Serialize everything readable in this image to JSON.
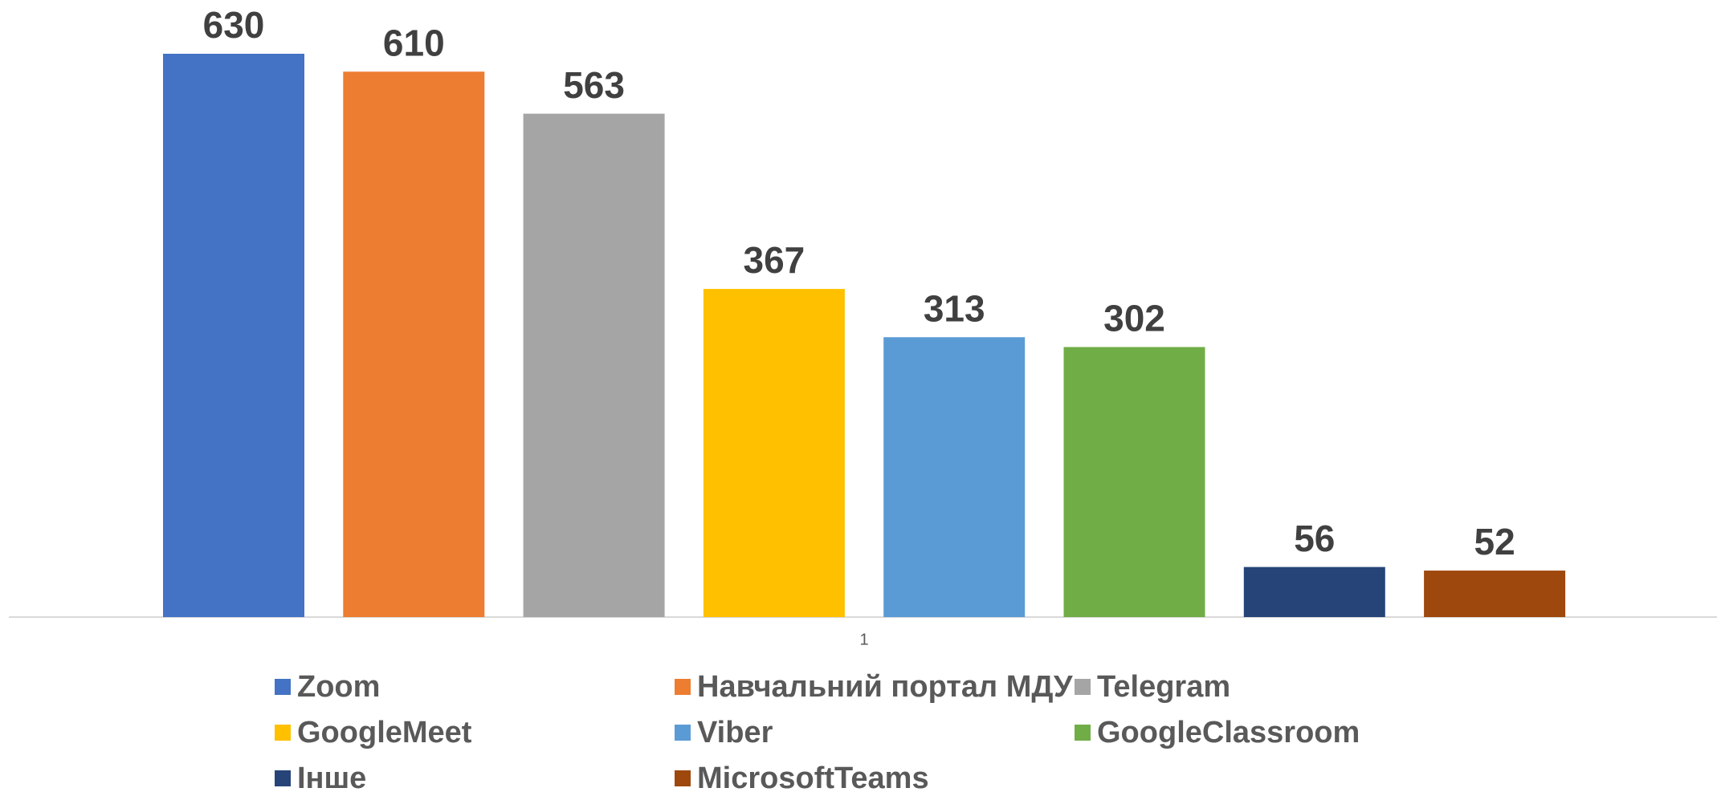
{
  "chart_data": {
    "type": "bar",
    "categories": [
      "1"
    ],
    "series": [
      {
        "name": "Zoom",
        "color": "#4472c4",
        "values": [
          630
        ]
      },
      {
        "name": "Навчальний портал МДУ",
        "color": "#ed7d31",
        "values": [
          610
        ]
      },
      {
        "name": "Telegram",
        "color": "#a5a5a5",
        "values": [
          563
        ]
      },
      {
        "name": "GoogleMeet",
        "color": "#ffc000",
        "values": [
          367
        ]
      },
      {
        "name": "Viber",
        "color": "#5b9bd5",
        "values": [
          313
        ]
      },
      {
        "name": "GoogleClassroom",
        "color": "#70ad47",
        "values": [
          302
        ]
      },
      {
        "name": "Інше",
        "color": "#264478",
        "values": [
          56
        ]
      },
      {
        "name": "MicrosoftTeams",
        "color": "#9e480e",
        "values": [
          52
        ]
      }
    ],
    "ylim": [
      0,
      700
    ],
    "legend": "bottom"
  }
}
